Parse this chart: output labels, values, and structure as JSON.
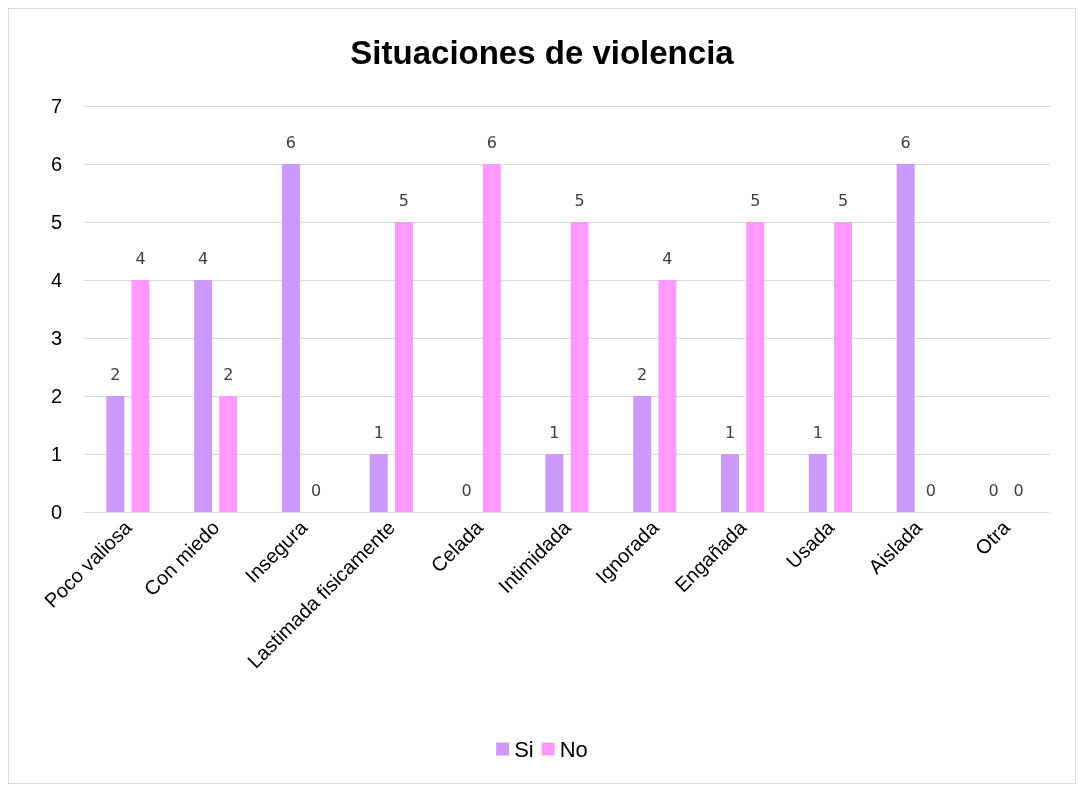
{
  "chart_data": {
    "type": "bar",
    "title": "Situaciones de violencia",
    "categories": [
      "Poco valiosa",
      "Con miedo",
      "Insegura",
      "Lastimada fisicamente",
      "Celada",
      "Intimidada",
      "Ignorada",
      "Engañada",
      "Usada",
      "Aislada",
      "Otra"
    ],
    "series": [
      {
        "name": "Si",
        "color": "#cc99ff",
        "values": [
          2,
          4,
          6,
          1,
          0,
          1,
          2,
          1,
          1,
          6,
          0
        ]
      },
      {
        "name": "No",
        "color": "#ff99ff",
        "values": [
          4,
          2,
          0,
          5,
          6,
          5,
          4,
          5,
          5,
          0,
          0
        ]
      }
    ],
    "ylim": [
      0,
      7
    ],
    "yticks": [
      0,
      1,
      2,
      3,
      4,
      5,
      6,
      7
    ],
    "grid": "y",
    "legend": "bottom",
    "data_labels": true
  }
}
